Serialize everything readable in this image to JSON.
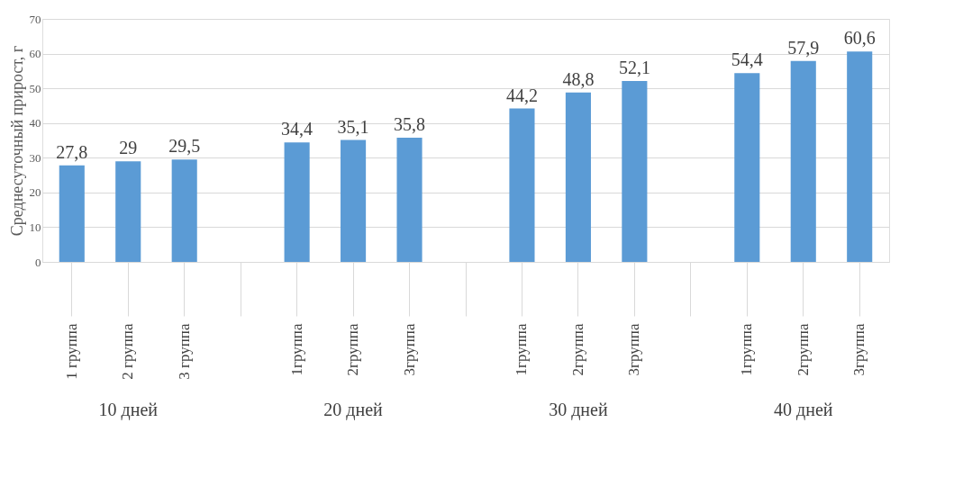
{
  "chart_data": {
    "type": "bar",
    "ylabel": "Среднесуточный прирост, г",
    "categories": [
      "1 группа",
      "2 группа",
      "3 группа",
      null,
      "1группа",
      "2группа",
      "3группа",
      null,
      "1группа",
      "2группа",
      "3группа",
      null,
      "1группа",
      "2группа",
      "3группа"
    ],
    "values": [
      27.8,
      29,
      29.5,
      null,
      34.4,
      35.1,
      35.8,
      null,
      44.2,
      48.8,
      52.1,
      null,
      54.4,
      57.9,
      60.6
    ],
    "value_labels": [
      "27,8",
      "29",
      "29,5",
      null,
      "34,4",
      "35,1",
      "35,8",
      null,
      "44,2",
      "48,8",
      "52,1",
      null,
      "54,4",
      "57,9",
      "60,6"
    ],
    "color": "#5b9bd5",
    "ylim": [
      0,
      70
    ],
    "yticks": [
      0,
      10,
      20,
      30,
      40,
      50,
      60,
      70
    ],
    "grid": "y",
    "annotations": [
      "10 дней",
      "20 дней",
      "30 дней",
      "40 дней"
    ]
  }
}
